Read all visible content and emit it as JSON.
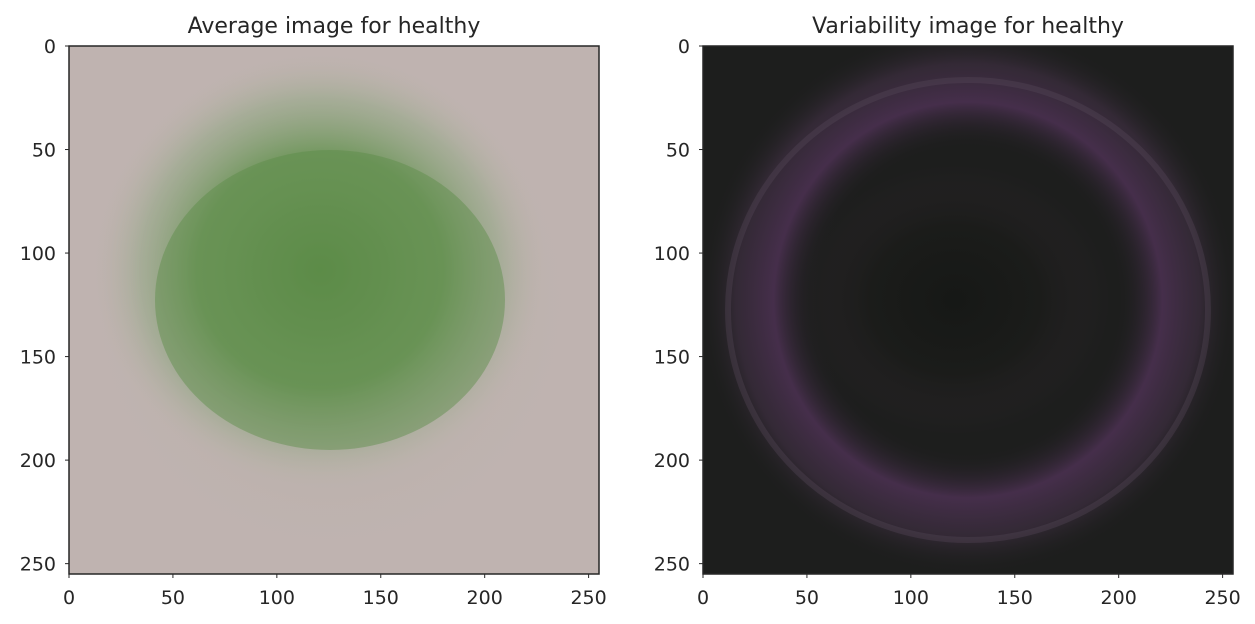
{
  "chart_data": [
    {
      "type": "heatmap",
      "title": "Average image for healthy",
      "xlim": [
        0,
        255
      ],
      "ylim": [
        255,
        0
      ],
      "x_ticks": [
        "0",
        "50",
        "100",
        "150",
        "200",
        "250"
      ],
      "y_ticks": [
        "0",
        "50",
        "100",
        "150",
        "200",
        "250"
      ],
      "grid": false,
      "background_color": "#bfb3b0",
      "content_color": "#5e8c4a"
    },
    {
      "type": "heatmap",
      "title": "Variability image for healthy",
      "xlim": [
        0,
        255
      ],
      "ylim": [
        255,
        0
      ],
      "x_ticks": [
        "0",
        "50",
        "100",
        "150",
        "200",
        "250"
      ],
      "y_ticks": [
        "0",
        "50",
        "100",
        "150",
        "200",
        "250"
      ],
      "grid": false,
      "background_color": "#1d1e1d",
      "content_color": "#4a2f4e"
    }
  ]
}
